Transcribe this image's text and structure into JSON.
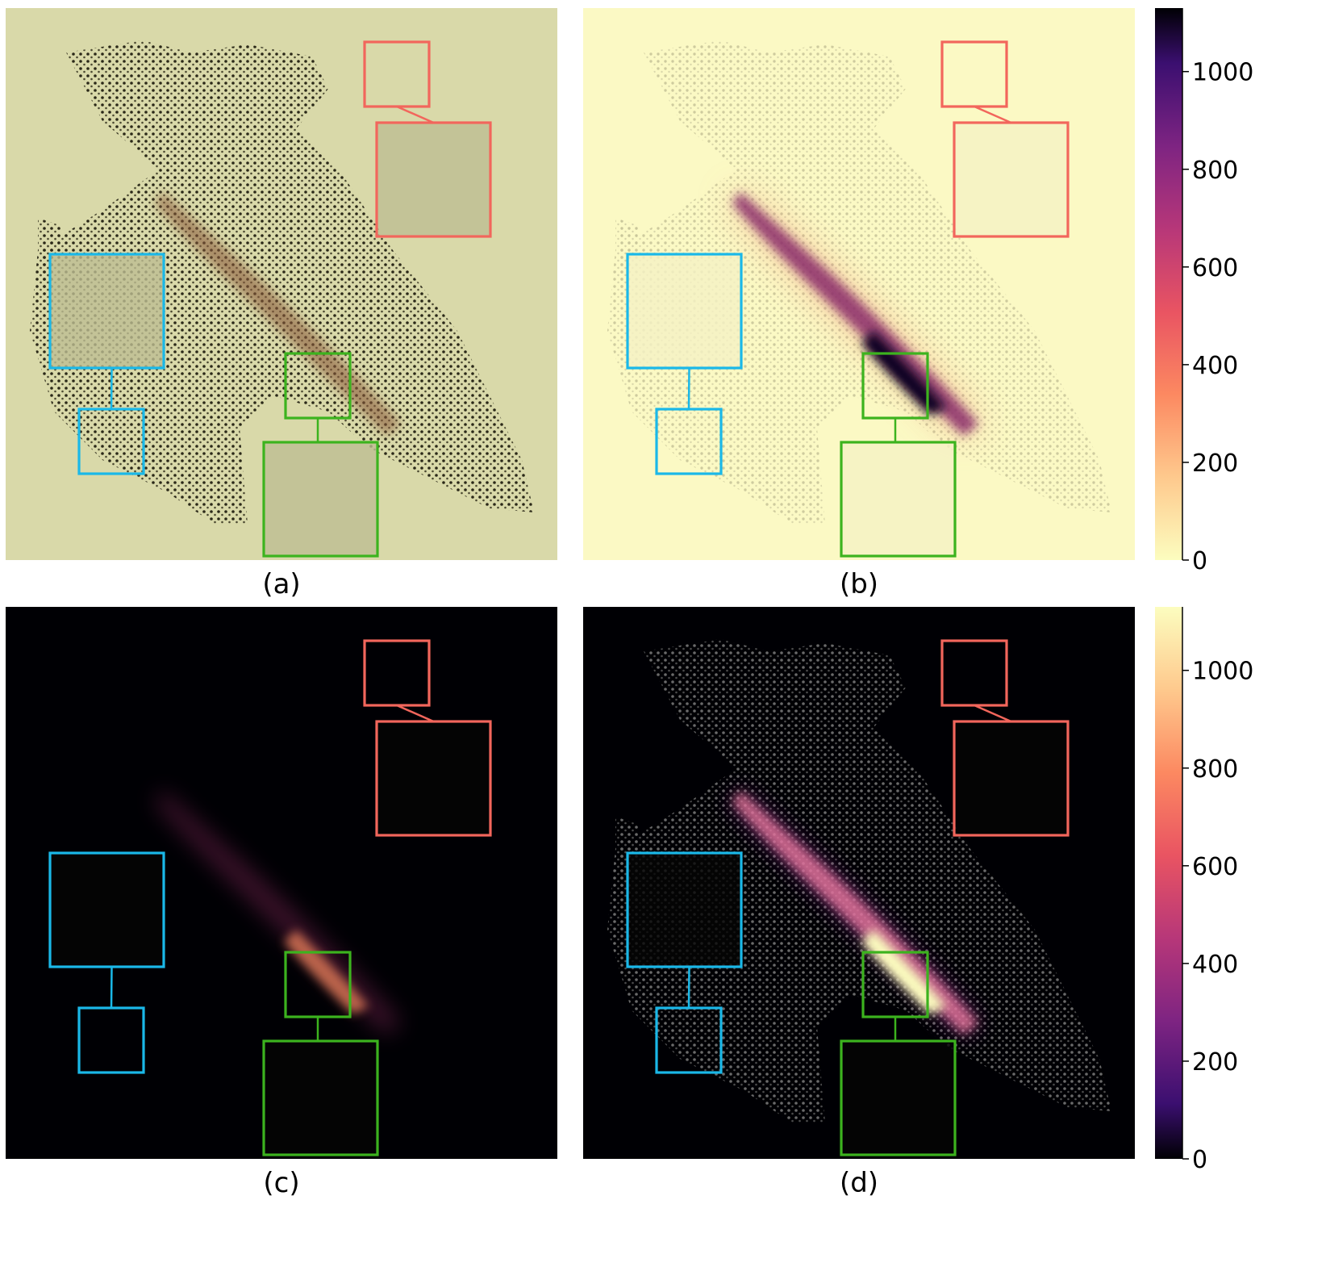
{
  "chart_data": {
    "type": "heatmap",
    "panels": [
      {
        "id": "a",
        "label": "(a)",
        "theme": "light",
        "encoding": "shaded-relief"
      },
      {
        "id": "b",
        "label": "(b)",
        "theme": "light",
        "encoding": "density"
      },
      {
        "id": "c",
        "label": "(c)",
        "theme": "dark",
        "encoding": "density"
      },
      {
        "id": "d",
        "label": "(d)",
        "theme": "dark",
        "encoding": "shaded-relief-density"
      }
    ],
    "colorbars": [
      {
        "for_row": "top",
        "colormap": "magma_r",
        "range": [
          0,
          1130
        ],
        "ticks": [
          0,
          200,
          400,
          600,
          800,
          1000
        ]
      },
      {
        "for_row": "bottom",
        "colormap": "magma",
        "range": [
          0,
          1130
        ],
        "ticks": [
          0,
          200,
          400,
          600,
          800,
          1000
        ]
      }
    ],
    "highlight_colors": {
      "sparse": "#f2665c",
      "medium": "#1ab8e8",
      "dense": "#3cb31e"
    },
    "colors": {
      "light_background": "#fbf9c4",
      "shaded_background": "#d9d9a9",
      "dark_background": "#000004"
    }
  }
}
